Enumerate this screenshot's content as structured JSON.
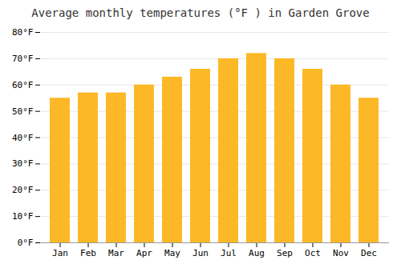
{
  "chart_data": {
    "type": "bar",
    "title": "Average monthly temperatures (°F ) in Garden Grove",
    "categories": [
      "Jan",
      "Feb",
      "Mar",
      "Apr",
      "May",
      "Jun",
      "Jul",
      "Aug",
      "Sep",
      "Oct",
      "Nov",
      "Dec"
    ],
    "values": [
      55,
      57,
      57,
      60,
      63,
      66,
      70,
      72,
      70,
      66,
      60,
      55
    ],
    "color": "#FDB827",
    "ylim": [
      0,
      80
    ],
    "yticks": [
      {
        "value": 0,
        "label": "0°F"
      },
      {
        "value": 10,
        "label": "10°F"
      },
      {
        "value": 20,
        "label": "20°F"
      },
      {
        "value": 30,
        "label": "30°F"
      },
      {
        "value": 40,
        "label": "40°F"
      },
      {
        "value": 50,
        "label": "50°F"
      },
      {
        "value": 60,
        "label": "60°F"
      },
      {
        "value": 70,
        "label": "70°F"
      },
      {
        "value": 80,
        "label": "80°F"
      }
    ],
    "grid": true
  }
}
